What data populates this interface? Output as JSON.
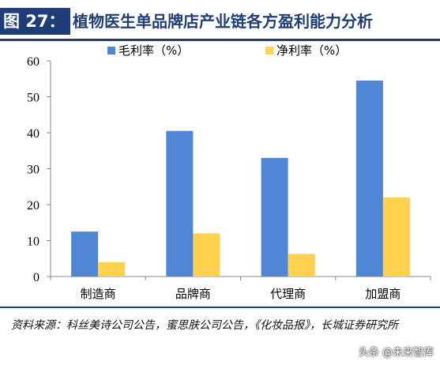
{
  "header": {
    "figure_number": "图 27：",
    "title": "植物医生单品牌店产业链各方盈利能力分析"
  },
  "chart_data": {
    "type": "bar",
    "categories": [
      "制造商",
      "品牌商",
      "代理商",
      "加盟商"
    ],
    "series": [
      {
        "name": "毛利率（%）",
        "color": "#4f86d6",
        "values": [
          12.5,
          40.5,
          33,
          54.5
        ]
      },
      {
        "name": "净利率（%）",
        "color": "#ffd14f",
        "values": [
          4,
          12,
          6.3,
          22
        ]
      }
    ],
    "ylim": [
      0,
      60
    ],
    "yticks": [
      0,
      10,
      20,
      30,
      40,
      50,
      60
    ],
    "grid": false,
    "legend_position": "top"
  },
  "source": {
    "text": "资料来源：科丝美诗公司公告，蜜思肤公司公告，《化妆品报》，长城证券研究所"
  },
  "watermark": "头条 @未来智库"
}
